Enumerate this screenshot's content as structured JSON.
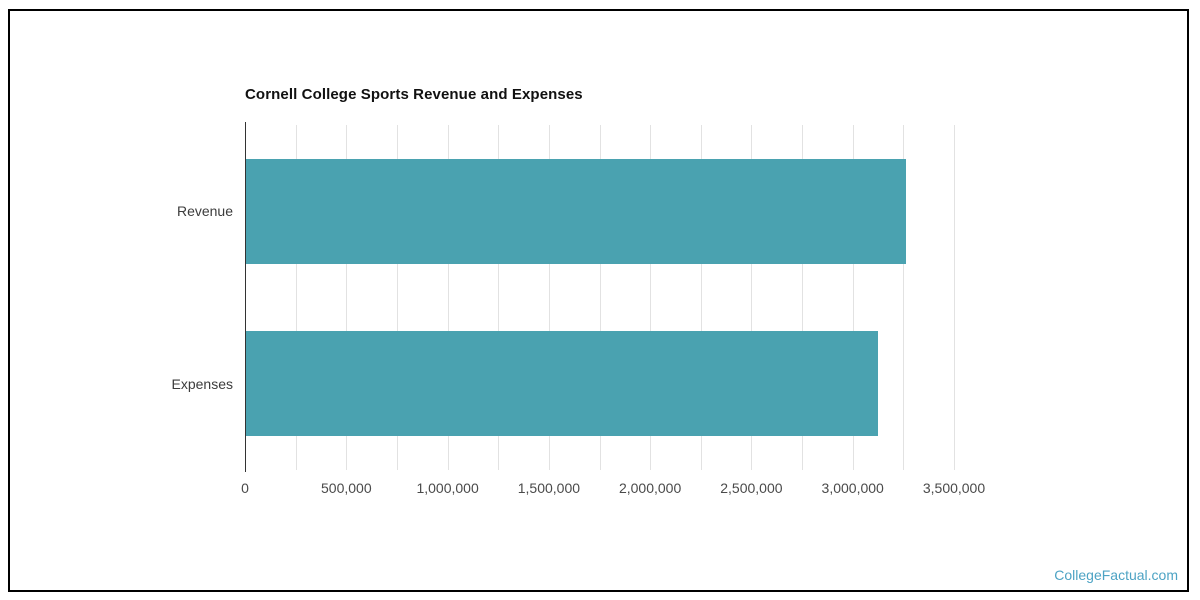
{
  "page": {
    "watermark": "CollegeFactual.com",
    "colors": {
      "bar": "#4aa2b0",
      "watermark": "#4da3c4",
      "border": "#000000",
      "grid": "#e2e2e2",
      "axis": "#333333",
      "title": "#111111"
    }
  },
  "chart_data": {
    "type": "bar",
    "orientation": "horizontal",
    "title": "Cornell College Sports Revenue and Expenses",
    "categories": [
      "Revenue",
      "Expenses"
    ],
    "values": [
      3258000,
      3120000
    ],
    "xlabel": "",
    "ylabel": "",
    "xlim": [
      0,
      3500000
    ],
    "x_tick_step_minor": 250000,
    "x_tick_values": [
      0,
      500000,
      1000000,
      1500000,
      2000000,
      2500000,
      3000000,
      3500000
    ],
    "x_tick_labels": [
      "0",
      "500,000",
      "1,000,000",
      "1,500,000",
      "2,000,000",
      "2,500,000",
      "3,000,000",
      "3,500,000"
    ],
    "grid": true,
    "legend": false
  }
}
